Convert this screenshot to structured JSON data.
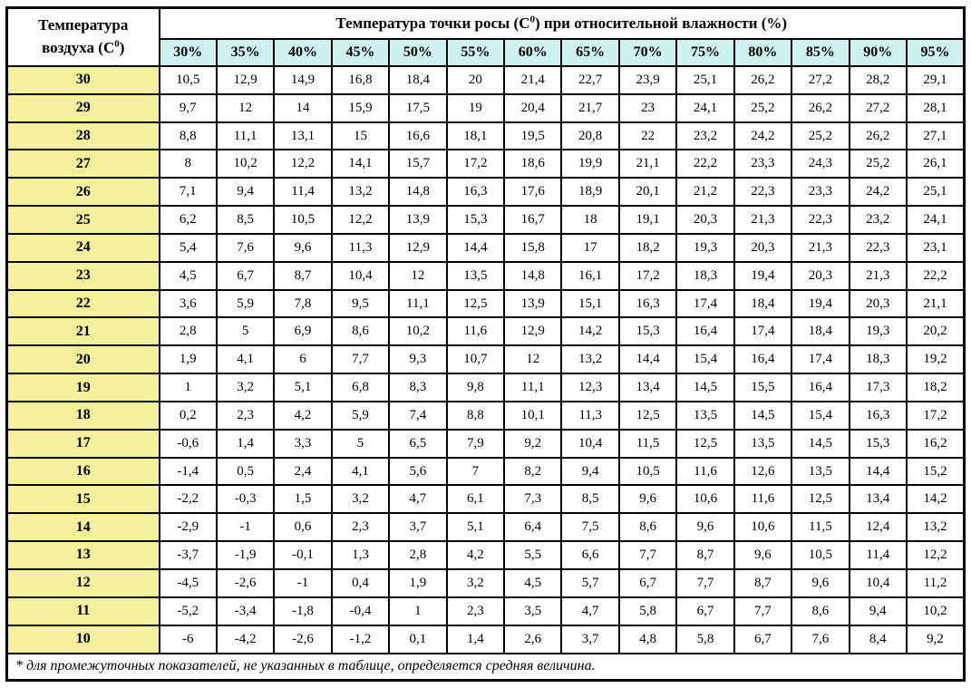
{
  "colors": {
    "border": "#000000",
    "temp_col_bg": "#f5f09c",
    "humidity_header_bg": "#cdf2f0",
    "cell_bg": "#ffffff"
  },
  "corner": {
    "line1": "Температура",
    "line2_pre": "воздуха (С",
    "sup": "0",
    "mark": "ˬ",
    "line2_post": ")"
  },
  "title": {
    "pre": "Температура точки росы (С",
    "sup": "0",
    "mark": "ˬ",
    "post": ") при относительной влажности (%)"
  },
  "footnote": "* для промежуточных показателей, не указанных в таблице, определяется средняя величина.",
  "chart_data": {
    "type": "table",
    "title": "Температура точки росы (С0) при относительной влажности (%)",
    "row_header_label": "Температура воздуха (С0)",
    "columns": [
      "30%",
      "35%",
      "40%",
      "45%",
      "50%",
      "55%",
      "60%",
      "65%",
      "70%",
      "75%",
      "80%",
      "85%",
      "90%",
      "95%"
    ],
    "rows": [
      {
        "temp": "30",
        "values": [
          "10,5",
          "12,9",
          "14,9",
          "16,8",
          "18,4",
          "20",
          "21,4",
          "22,7",
          "23,9",
          "25,1",
          "26,2",
          "27,2",
          "28,2",
          "29,1"
        ]
      },
      {
        "temp": "29",
        "values": [
          "9,7",
          "12",
          "14",
          "15,9",
          "17,5",
          "19",
          "20,4",
          "21,7",
          "23",
          "24,1",
          "25,2",
          "26,2",
          "27,2",
          "28,1"
        ]
      },
      {
        "temp": "28",
        "values": [
          "8,8",
          "11,1",
          "13,1",
          "15",
          "16,6",
          "18,1",
          "19,5",
          "20,8",
          "22",
          "23,2",
          "24,2",
          "25,2",
          "26,2",
          "27,1"
        ]
      },
      {
        "temp": "27",
        "values": [
          "8",
          "10,2",
          "12,2",
          "14,1",
          "15,7",
          "17,2",
          "18,6",
          "19,9",
          "21,1",
          "22,2",
          "23,3",
          "24,3",
          "25,2",
          "26,1"
        ]
      },
      {
        "temp": "26",
        "values": [
          "7,1",
          "9,4",
          "11,4",
          "13,2",
          "14,8",
          "16,3",
          "17,6",
          "18,9",
          "20,1",
          "21,2",
          "22,3",
          "23,3",
          "24,2",
          "25,1"
        ]
      },
      {
        "temp": "25",
        "values": [
          "6,2",
          "8,5",
          "10,5",
          "12,2",
          "13,9",
          "15,3",
          "16,7",
          "18",
          "19,1",
          "20,3",
          "21,3",
          "22,3",
          "23,2",
          "24,1"
        ]
      },
      {
        "temp": "24",
        "values": [
          "5,4",
          "7,6",
          "9,6",
          "11,3",
          "12,9",
          "14,4",
          "15,8",
          "17",
          "18,2",
          "19,3",
          "20,3",
          "21,3",
          "22,3",
          "23,1"
        ]
      },
      {
        "temp": "23",
        "values": [
          "4,5",
          "6,7",
          "8,7",
          "10,4",
          "12",
          "13,5",
          "14,8",
          "16,1",
          "17,2",
          "18,3",
          "19,4",
          "20,3",
          "21,3",
          "22,2"
        ]
      },
      {
        "temp": "22",
        "values": [
          "3,6",
          "5,9",
          "7,8",
          "9,5",
          "11,1",
          "12,5",
          "13,9",
          "15,1",
          "16,3",
          "17,4",
          "18,4",
          "19,4",
          "20,3",
          "21,1"
        ]
      },
      {
        "temp": "21",
        "values": [
          "2,8",
          "5",
          "6,9",
          "8,6",
          "10,2",
          "11,6",
          "12,9",
          "14,2",
          "15,3",
          "16,4",
          "17,4",
          "18,4",
          "19,3",
          "20,2"
        ]
      },
      {
        "temp": "20",
        "values": [
          "1,9",
          "4,1",
          "6",
          "7,7",
          "9,3",
          "10,7",
          "12",
          "13,2",
          "14,4",
          "15,4",
          "16,4",
          "17,4",
          "18,3",
          "19,2"
        ]
      },
      {
        "temp": "19",
        "values": [
          "1",
          "3,2",
          "5,1",
          "6,8",
          "8,3",
          "9,8",
          "11,1",
          "12,3",
          "13,4",
          "14,5",
          "15,5",
          "16,4",
          "17,3",
          "18,2"
        ]
      },
      {
        "temp": "18",
        "values": [
          "0,2",
          "2,3",
          "4,2",
          "5,9",
          "7,4",
          "8,8",
          "10,1",
          "11,3",
          "12,5",
          "13,5",
          "14,5",
          "15,4",
          "16,3",
          "17,2"
        ]
      },
      {
        "temp": "17",
        "values": [
          "-0,6",
          "1,4",
          "3,3",
          "5",
          "6,5",
          "7,9",
          "9,2",
          "10,4",
          "11,5",
          "12,5",
          "13,5",
          "14,5",
          "15,3",
          "16,2"
        ]
      },
      {
        "temp": "16",
        "values": [
          "-1,4",
          "0,5",
          "2,4",
          "4,1",
          "5,6",
          "7",
          "8,2",
          "9,4",
          "10,5",
          "11,6",
          "12,6",
          "13,5",
          "14,4",
          "15,2"
        ]
      },
      {
        "temp": "15",
        "values": [
          "-2,2",
          "-0,3",
          "1,5",
          "3,2",
          "4,7",
          "6,1",
          "7,3",
          "8,5",
          "9,6",
          "10,6",
          "11,6",
          "12,5",
          "13,4",
          "14,2"
        ]
      },
      {
        "temp": "14",
        "values": [
          "-2,9",
          "-1",
          "0,6",
          "2,3",
          "3,7",
          "5,1",
          "6,4",
          "7,5",
          "8,6",
          "9,6",
          "10,6",
          "11,5",
          "12,4",
          "13,2"
        ]
      },
      {
        "temp": "13",
        "values": [
          "-3,7",
          "-1,9",
          "-0,1",
          "1,3",
          "2,8",
          "4,2",
          "5,5",
          "6,6",
          "7,7",
          "8,7",
          "9,6",
          "10,5",
          "11,4",
          "12,2"
        ]
      },
      {
        "temp": "12",
        "values": [
          "-4,5",
          "-2,6",
          "-1",
          "0,4",
          "1,9",
          "3,2",
          "4,5",
          "5,7",
          "6,7",
          "7,7",
          "8,7",
          "9,6",
          "10,4",
          "11,2"
        ]
      },
      {
        "temp": "11",
        "values": [
          "-5,2",
          "-3,4",
          "-1,8",
          "-0,4",
          "1",
          "2,3",
          "3,5",
          "4,7",
          "5,8",
          "6,7",
          "7,7",
          "8,6",
          "9,4",
          "10,2"
        ]
      },
      {
        "temp": "10",
        "values": [
          "-6",
          "-4,2",
          "-2,6",
          "-1,2",
          "0,1",
          "1,4",
          "2,6",
          "3,7",
          "4,8",
          "5,8",
          "6,7",
          "7,6",
          "8,4",
          "9,2"
        ]
      }
    ]
  }
}
